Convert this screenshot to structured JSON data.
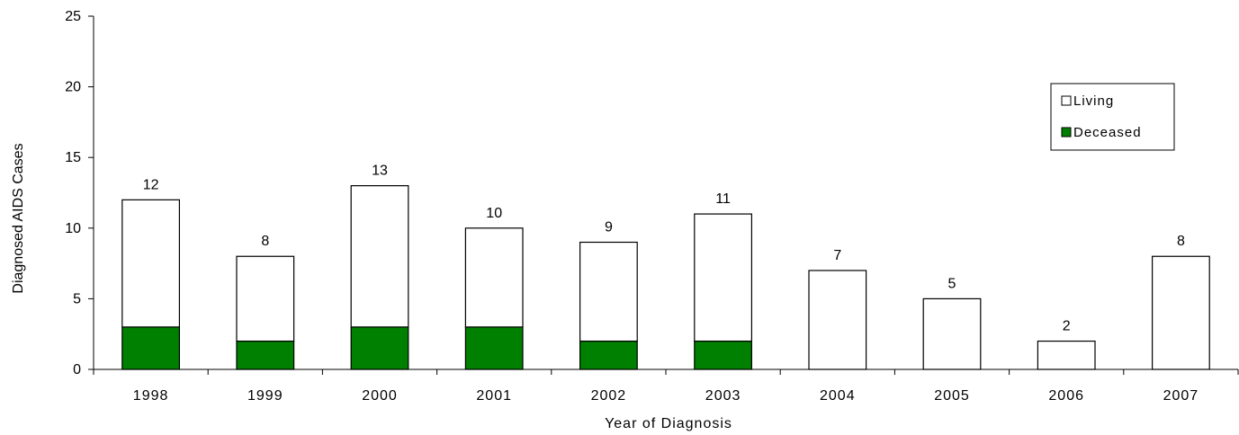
{
  "chart_data": {
    "type": "bar",
    "stacked": true,
    "title": "",
    "xlabel": "Year of Diagnosis",
    "ylabel": "Diagnosed AIDS Cases",
    "ylim": [
      0,
      25
    ],
    "yticks": [
      0,
      5,
      10,
      15,
      20,
      25
    ],
    "categories": [
      "1998",
      "1999",
      "2000",
      "2001",
      "2002",
      "2003",
      "2004",
      "2005",
      "2006",
      "2007"
    ],
    "series": [
      {
        "name": "Deceased",
        "color": "#008000",
        "values": [
          3,
          2,
          3,
          3,
          2,
          2,
          0,
          0,
          0,
          0
        ]
      },
      {
        "name": "Living",
        "color": "#ffffff",
        "values": [
          9,
          6,
          10,
          7,
          7,
          9,
          7,
          5,
          2,
          8
        ]
      }
    ],
    "totals": [
      12,
      8,
      13,
      10,
      9,
      11,
      7,
      5,
      2,
      8
    ],
    "legend": {
      "placement": "top-right",
      "entries": [
        {
          "label": "Living",
          "color": "#ffffff"
        },
        {
          "label": "Deceased",
          "color": "#008000"
        }
      ]
    },
    "grid": false
  }
}
